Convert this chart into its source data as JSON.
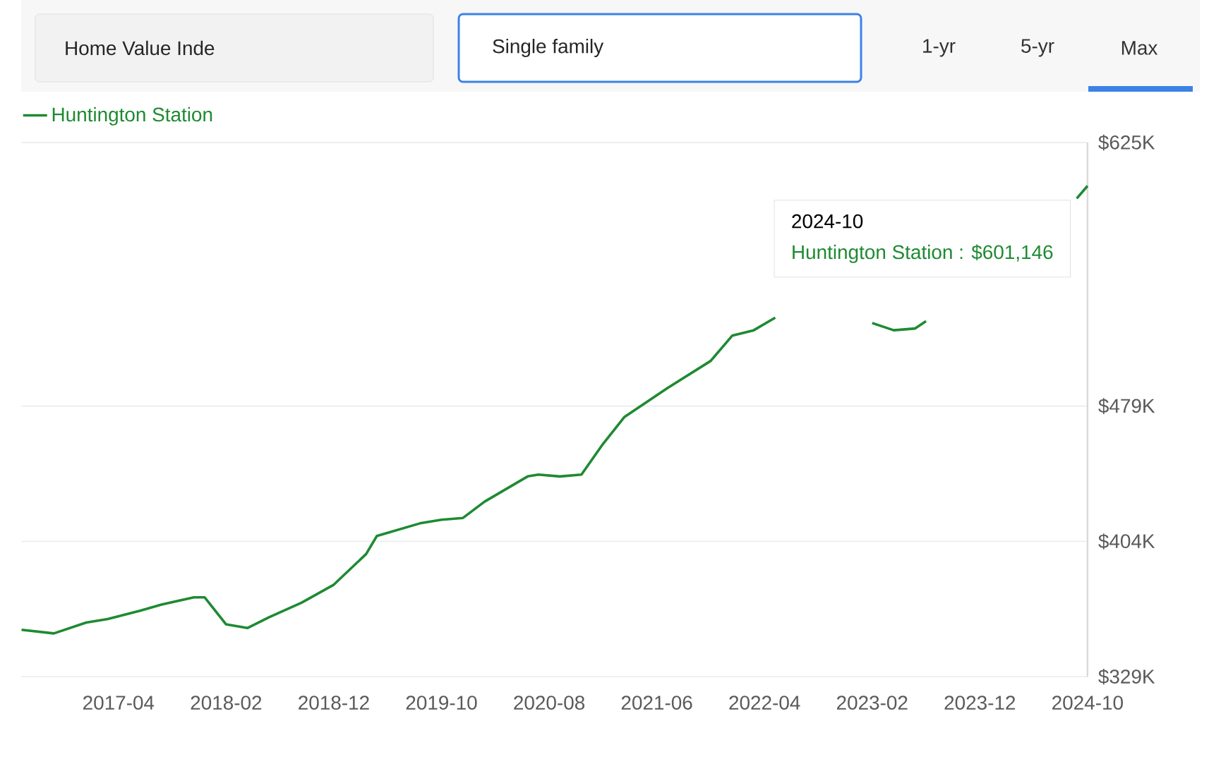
{
  "chart_data": {
    "type": "line",
    "x": [
      "2016-07",
      "2016-10",
      "2017-01",
      "2017-03",
      "2017-06",
      "2017-08",
      "2017-11",
      "2017-12",
      "2018-02",
      "2018-04",
      "2018-06",
      "2018-09",
      "2018-12",
      "2019-03",
      "2019-04",
      "2019-08",
      "2019-10",
      "2019-12",
      "2020-02",
      "2020-06",
      "2020-07",
      "2020-09",
      "2020-11",
      "2021-01",
      "2021-03",
      "2021-05",
      "2021-07",
      "2021-11",
      "2022-01",
      "2022-03",
      "2022-05",
      "2022-09",
      "2023-02",
      "2023-04",
      "2023-06",
      "2023-07",
      "2024-01",
      "2024-09",
      "2024-10"
    ],
    "series": [
      {
        "name": "Huntington Station",
        "color": "#1e8a32",
        "values": [
          355,
          353,
          359,
          361,
          365.6,
          369,
          373,
          373,
          358,
          356,
          362,
          370,
          380,
          397,
          407,
          414,
          416,
          417,
          426,
          440,
          441,
          440,
          441,
          458,
          473,
          481,
          489,
          504,
          518,
          521,
          528,
          null,
          525,
          521,
          522,
          526,
          null,
          594,
          601
        ]
      }
    ],
    "xlim": [
      "2016-07",
      "2024-10"
    ],
    "xticks": [
      "2017-04",
      "2018-02",
      "2018-12",
      "2019-10",
      "2020-08",
      "2021-06",
      "2022-04",
      "2023-02",
      "2023-12",
      "2024-10"
    ],
    "ylim": [
      329,
      625
    ],
    "yticks": [
      {
        "value": 329,
        "label": "$329K"
      },
      {
        "value": 404,
        "label": "$404K"
      },
      {
        "value": 479,
        "label": "$479K"
      },
      {
        "value": 625,
        "label": "$625K"
      }
    ],
    "grid": "y",
    "legend": "top left",
    "line_style": "solid",
    "annotations": [
      "Home Value Inde",
      "Single family",
      "1-yr",
      "5-yr",
      "Max",
      "2024-10",
      "Huntington Station : $601,146"
    ]
  }
}
